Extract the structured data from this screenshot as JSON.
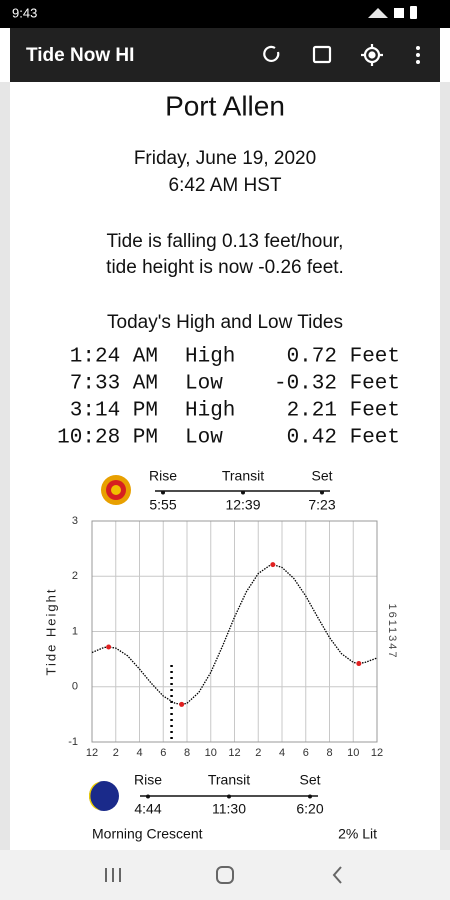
{
  "status_bar": {
    "time": "9:43"
  },
  "app_bar": {
    "title": "Tide Now HI"
  },
  "location": "Port Allen",
  "date": "Friday, June 19, 2020",
  "time": "6:42 AM HST",
  "tide_status": [
    "Tide is falling 0.13 feet/hour,",
    "tide height is now -0.26 feet."
  ],
  "tides": {
    "title": "Today's High and Low Tides",
    "rows": [
      [
        "1:24 AM",
        "High",
        "0.72 Feet"
      ],
      [
        "7:33 AM",
        "Low",
        "-0.32 Feet"
      ],
      [
        "3:14 PM",
        "High",
        "2.21 Feet"
      ],
      [
        "10:28 PM",
        "Low",
        "0.42 Feet"
      ]
    ]
  },
  "sun": {
    "labels": [
      "Rise",
      "Transit",
      "Set"
    ],
    "times": [
      "5:55",
      "12:39",
      "7:23"
    ]
  },
  "chart_data": {
    "type": "line",
    "ylabel": "Tide Height",
    "station": "1611347",
    "xlim": [
      0,
      24
    ],
    "ylim": [
      -1,
      3
    ],
    "xticks": [
      {
        "value": 0,
        "label": "12"
      },
      2,
      4,
      6,
      8,
      10,
      {
        "value": 12,
        "label": "12"
      },
      {
        "value": 14,
        "label": "2"
      },
      {
        "value": 16,
        "label": "4"
      },
      {
        "value": 18,
        "label": "6"
      },
      {
        "value": 20,
        "label": "8"
      },
      {
        "value": 22,
        "label": "10"
      },
      {
        "value": 24,
        "label": "12"
      }
    ],
    "yticks": [
      -1,
      0,
      1,
      2,
      3
    ],
    "grid": true,
    "now_x": 6.7,
    "series": [
      {
        "name": "tide",
        "color": "#000000",
        "x": [
          0,
          1,
          1.4,
          2,
          3,
          4,
          5,
          6,
          7,
          7.55,
          8,
          9,
          10,
          11,
          12,
          13,
          14,
          15,
          15.23,
          16,
          17,
          18,
          19,
          20,
          21,
          22,
          22.47,
          23,
          24
        ],
        "values": [
          0.62,
          0.71,
          0.72,
          0.7,
          0.56,
          0.32,
          0.06,
          -0.17,
          -0.3,
          -0.32,
          -0.3,
          -0.1,
          0.26,
          0.74,
          1.26,
          1.72,
          2.05,
          2.2,
          2.21,
          2.16,
          1.96,
          1.64,
          1.26,
          0.89,
          0.6,
          0.44,
          0.42,
          0.44,
          0.52
        ]
      },
      {
        "name": "extremes",
        "color": "#e02020",
        "x": [
          1.4,
          7.55,
          15.23,
          22.47
        ],
        "values": [
          0.72,
          -0.32,
          2.21,
          0.42
        ]
      }
    ]
  },
  "moon": {
    "labels": [
      "Rise",
      "Transit",
      "Set"
    ],
    "times": [
      "4:44",
      "11:30",
      "6:20"
    ],
    "phase": "Morning Crescent",
    "lit": "2% Lit"
  }
}
